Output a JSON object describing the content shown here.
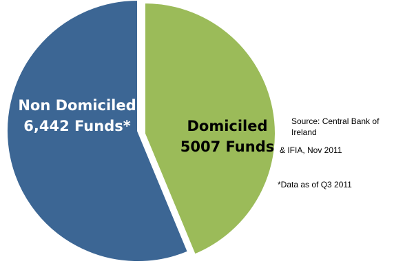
{
  "chart_data": {
    "type": "pie",
    "title": "",
    "slices": [
      {
        "label": "Domiciled",
        "value": 5007,
        "value_label": "5007 Funds",
        "color": "#9BBB59",
        "label_color": "#000000"
      },
      {
        "label": "Non Domiciled",
        "value": 6442,
        "value_label": "6,442 Funds*",
        "color": "#3C6694",
        "label_color": "#ffffff"
      }
    ],
    "start_angle_deg": 0,
    "direction": "clockwise",
    "exploded_slice": "Domiciled",
    "legend": "none"
  },
  "notes": {
    "source_line_1": "Source: Central Bank of Ireland",
    "source_line_2": "& IFIA, Nov  2011",
    "footnote": "*Data as of Q3 2011"
  },
  "colors": {
    "background": "#ffffff",
    "separator": "#ffffff"
  }
}
